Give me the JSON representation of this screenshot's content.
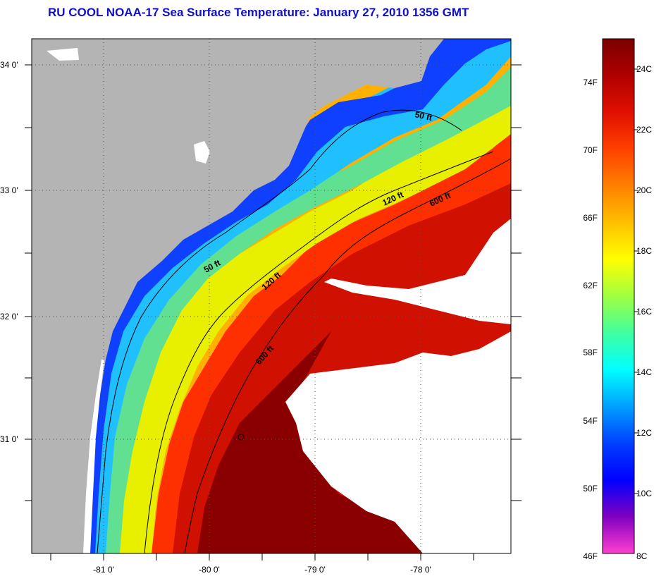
{
  "title": "RU COOL  NOAA-17  Sea Surface Temperature:  January 27, 2010 1356 GMT",
  "map": {
    "lat_labels": [
      "34 0'",
      "33 0'",
      "32 0'",
      "31 0'"
    ],
    "lon_labels": [
      "-81 0'",
      "-80 0'",
      "-79 0'",
      "-78 0'"
    ],
    "contours": [
      {
        "label": "50 ft"
      },
      {
        "label": "50 ft"
      },
      {
        "label": "120 ft"
      },
      {
        "label": "120 ft"
      },
      {
        "label": "600 ft"
      },
      {
        "label": "600 ft"
      }
    ],
    "colors": {
      "land": "#b4b4b4",
      "no_data": "#ffffff",
      "graticule": "#555555"
    }
  },
  "colorbar": {
    "fahrenheit_labels": [
      "74F",
      "70F",
      "66F",
      "62F",
      "58F",
      "54F",
      "50F",
      "46F"
    ],
    "celsius_labels": [
      "24C",
      "22C",
      "20C",
      "18C",
      "16C",
      "14C",
      "12C",
      "10C",
      "8C"
    ],
    "gradient": [
      "#7a0000",
      "#b00000",
      "#e01000",
      "#ff4000",
      "#ff8000",
      "#ffc000",
      "#ffff00",
      "#a0ff40",
      "#40ffa0",
      "#00ffff",
      "#00a0ff",
      "#0040ff",
      "#0000ff",
      "#8000c0",
      "#ff40d0"
    ]
  }
}
